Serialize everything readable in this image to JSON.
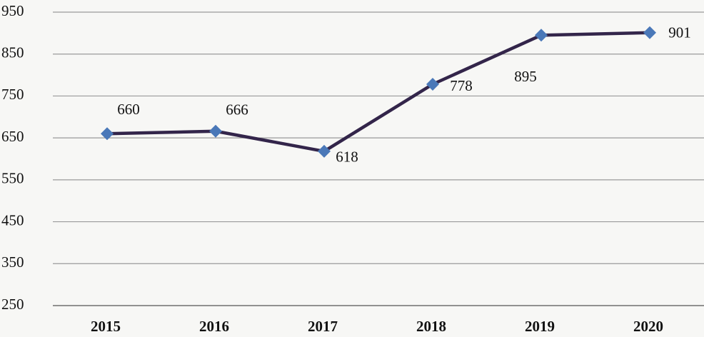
{
  "chart_data": {
    "type": "line",
    "categories": [
      "2015",
      "2016",
      "2017",
      "2018",
      "2019",
      "2020"
    ],
    "values": [
      660,
      666,
      618,
      778,
      895,
      901
    ],
    "color": "#33254a",
    "marker_color": "#4a78b8",
    "ylim": [
      250,
      950
    ],
    "yticks": [
      250,
      350,
      450,
      550,
      650,
      750,
      850,
      950
    ],
    "grid": true
  }
}
